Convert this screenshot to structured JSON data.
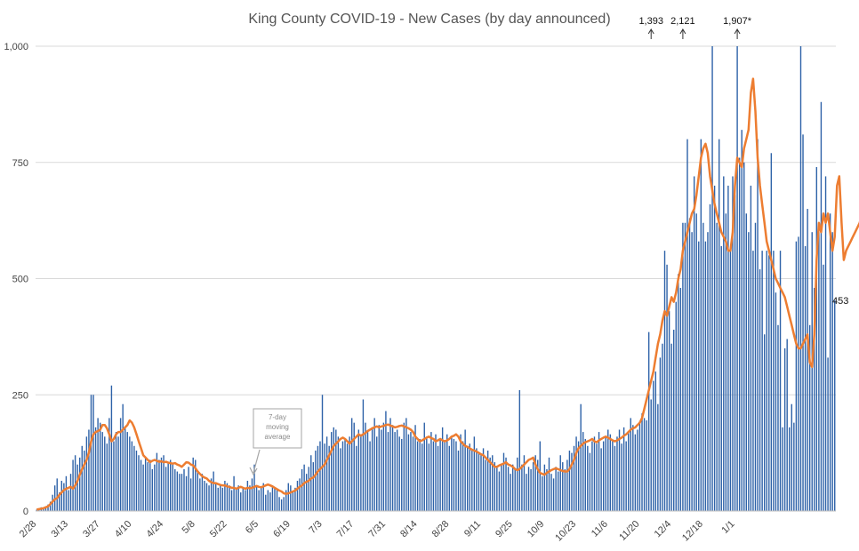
{
  "chart_data": {
    "type": "bar",
    "title": "King County COVID-19 - New Cases (by day announced)",
    "ylim": [
      0,
      1000
    ],
    "y_ticks": [
      "0",
      "250",
      "500",
      "750",
      "1,000"
    ],
    "y_tick_values": [
      0,
      250,
      500,
      750,
      1000
    ],
    "x_tick_labels": [
      "2/28",
      "3/13",
      "3/27",
      "4/10",
      "4/24",
      "5/8",
      "5/22",
      "6/5",
      "6/19",
      "7/3",
      "7/17",
      "7/31",
      "8/14",
      "8/28",
      "9/11",
      "9/25",
      "10/9",
      "10/23",
      "11/6",
      "11/20",
      "12/4",
      "12/18",
      "1/1"
    ],
    "start_date": "2020-02-28",
    "grid": true,
    "colors": {
      "bars": "#2e62a8",
      "line": "#ed7d31",
      "grid": "#d9d9d9"
    },
    "series": [
      {
        "kind": "bar",
        "values": [
          3,
          5,
          8,
          6,
          10,
          14,
          20,
          35,
          55,
          70,
          40,
          65,
          60,
          75,
          45,
          80,
          110,
          120,
          100,
          115,
          140,
          130,
          160,
          175,
          250,
          250,
          180,
          200,
          190,
          170,
          160,
          145,
          200,
          270,
          150,
          170,
          160,
          200,
          230,
          180,
          170,
          160,
          150,
          140,
          130,
          120,
          110,
          100,
          115,
          105,
          110,
          90,
          100,
          125,
          110,
          115,
          120,
          95,
          105,
          110,
          100,
          90,
          85,
          80,
          80,
          90,
          75,
          95,
          70,
          115,
          110,
          85,
          70,
          80,
          65,
          60,
          55,
          70,
          85,
          60,
          50,
          55,
          50,
          65,
          60,
          55,
          45,
          75,
          50,
          55,
          40,
          50,
          45,
          65,
          55,
          70,
          100,
          55,
          45,
          50,
          60,
          35,
          45,
          40,
          55,
          50,
          45,
          30,
          25,
          30,
          45,
          60,
          55,
          40,
          50,
          65,
          70,
          90,
          100,
          80,
          95,
          120,
          105,
          130,
          140,
          150,
          250,
          145,
          160,
          140,
          170,
          180,
          175,
          160,
          135,
          150,
          155,
          145,
          160,
          200,
          190,
          140,
          175,
          160,
          240,
          190,
          170,
          150,
          180,
          200,
          160,
          185,
          175,
          190,
          215,
          170,
          200,
          185,
          170,
          175,
          160,
          155,
          190,
          200,
          165,
          170,
          160,
          185,
          150,
          155,
          145,
          190,
          160,
          145,
          170,
          150,
          165,
          140,
          155,
          180,
          150,
          165,
          140,
          160,
          155,
          150,
          130,
          165,
          150,
          175,
          140,
          145,
          130,
          160,
          135,
          125,
          120,
          135,
          110,
          130,
          115,
          120,
          105,
          95,
          85,
          100,
          125,
          115,
          95,
          80,
          100,
          90,
          115,
          260,
          100,
          120,
          80,
          95,
          90,
          105,
          120,
          110,
          150,
          75,
          100,
          90,
          115,
          80,
          70,
          95,
          85,
          120,
          105,
          90,
          110,
          130,
          125,
          140,
          160,
          150,
          230,
          170,
          155,
          140,
          125,
          150,
          160,
          145,
          170,
          135,
          150,
          160,
          175,
          165,
          150,
          140,
          160,
          175,
          145,
          180,
          150,
          170,
          200,
          185,
          165,
          175,
          190,
          210,
          200,
          195,
          385,
          240,
          280,
          300,
          230,
          330,
          360,
          560,
          530,
          430,
          360,
          390,
          450,
          510,
          480,
          620,
          620,
          800,
          630,
          600,
          720,
          640,
          580,
          800,
          620,
          580,
          600,
          660,
          1000,
          700,
          620,
          800,
          570,
          720,
          640,
          700,
          560,
          720,
          680,
          1000,
          760,
          820,
          750,
          640,
          600,
          700,
          560,
          620,
          800,
          520,
          560,
          380,
          560,
          550,
          770,
          560,
          470,
          400,
          560,
          180,
          350,
          370,
          180,
          230,
          190,
          580,
          590,
          1000,
          810,
          570,
          650,
          400,
          600,
          480,
          740,
          600,
          880,
          530,
          720,
          330,
          640,
          600,
          453
        ],
        "label_last": "453"
      },
      {
        "kind": "line",
        "name": "7-day moving average",
        "values": [
          3,
          4,
          5,
          6,
          8,
          10,
          15,
          20,
          25,
          28,
          35,
          40,
          45,
          48,
          50,
          52,
          48,
          55,
          65,
          78,
          90,
          100,
          110,
          125,
          150,
          165,
          170,
          172,
          175,
          185,
          185,
          178,
          165,
          150,
          155,
          165,
          170,
          170,
          175,
          180,
          185,
          195,
          190,
          180,
          165,
          150,
          135,
          120,
          115,
          110,
          105,
          108,
          110,
          108,
          106,
          107,
          105,
          106,
          104,
          103,
          102,
          103,
          100,
          98,
          95,
          100,
          105,
          104,
          100,
          98,
          92,
          85,
          80,
          75,
          72,
          70,
          65,
          62,
          60,
          60,
          58,
          56,
          55,
          55,
          53,
          52,
          50,
          50,
          48,
          50,
          52,
          50,
          48,
          50,
          49,
          50,
          52,
          54,
          52,
          51,
          53,
          55,
          57,
          55,
          53,
          50,
          47,
          44,
          42,
          38,
          37,
          38,
          40,
          42,
          44,
          48,
          52,
          55,
          60,
          63,
          65,
          70,
          72,
          78,
          85,
          90,
          95,
          100,
          110,
          120,
          130,
          140,
          145,
          150,
          155,
          158,
          155,
          150,
          145,
          150,
          155,
          160,
          165,
          162,
          165,
          168,
          172,
          175,
          178,
          180,
          182,
          180,
          182,
          183,
          185,
          186,
          184,
          182,
          180,
          181,
          183,
          184,
          182,
          180,
          178,
          175,
          170,
          160,
          155,
          150,
          152,
          155,
          158,
          160,
          157,
          155,
          150,
          152,
          155,
          152,
          150,
          152,
          155,
          160,
          162,
          165,
          160,
          150,
          145,
          140,
          138,
          135,
          132,
          130,
          128,
          125,
          122,
          120,
          115,
          110,
          105,
          100,
          95,
          95,
          98,
          100,
          102,
          105,
          100,
          98,
          95,
          90,
          88,
          90,
          95,
          100,
          105,
          110,
          112,
          115,
          100,
          90,
          82,
          80,
          78,
          82,
          85,
          88,
          90,
          92,
          90,
          88,
          86,
          85,
          85,
          90,
          100,
          110,
          125,
          135,
          140,
          145,
          148,
          150,
          152,
          155,
          150,
          148,
          152,
          155,
          158,
          160,
          158,
          155,
          152,
          150,
          152,
          155,
          158,
          162,
          165,
          170,
          175,
          178,
          180,
          185,
          190,
          200,
          220,
          240,
          260,
          280,
          300,
          330,
          360,
          380,
          410,
          430,
          420,
          440,
          460,
          450,
          470,
          500,
          520,
          560,
          580,
          600,
          620,
          640,
          650,
          680,
          720,
          760,
          780,
          790,
          770,
          720,
          690,
          660,
          640,
          620,
          600,
          590,
          580,
          560,
          560,
          600,
          700,
          760,
          750,
          740,
          780,
          800,
          820,
          900,
          930,
          860,
          760,
          700,
          660,
          620,
          580,
          560,
          540,
          520,
          500,
          490,
          480,
          470,
          460,
          440,
          420,
          400,
          380,
          360,
          350,
          350,
          360,
          370,
          380,
          320,
          310,
          380,
          540,
          620,
          600,
          640,
          620,
          640,
          600,
          560,
          590,
          700,
          720,
          620,
          540,
          560,
          570,
          580,
          590,
          600,
          610,
          620,
          640,
          620,
          580
        ]
      }
    ],
    "annotations": [
      {
        "label": "1,393",
        "offset": 271
      },
      {
        "label": "2,121",
        "offset": 285
      },
      {
        "label": "1,907*",
        "offset": 309
      }
    ],
    "callout_label": [
      "7-day",
      "moving",
      "average"
    ]
  }
}
